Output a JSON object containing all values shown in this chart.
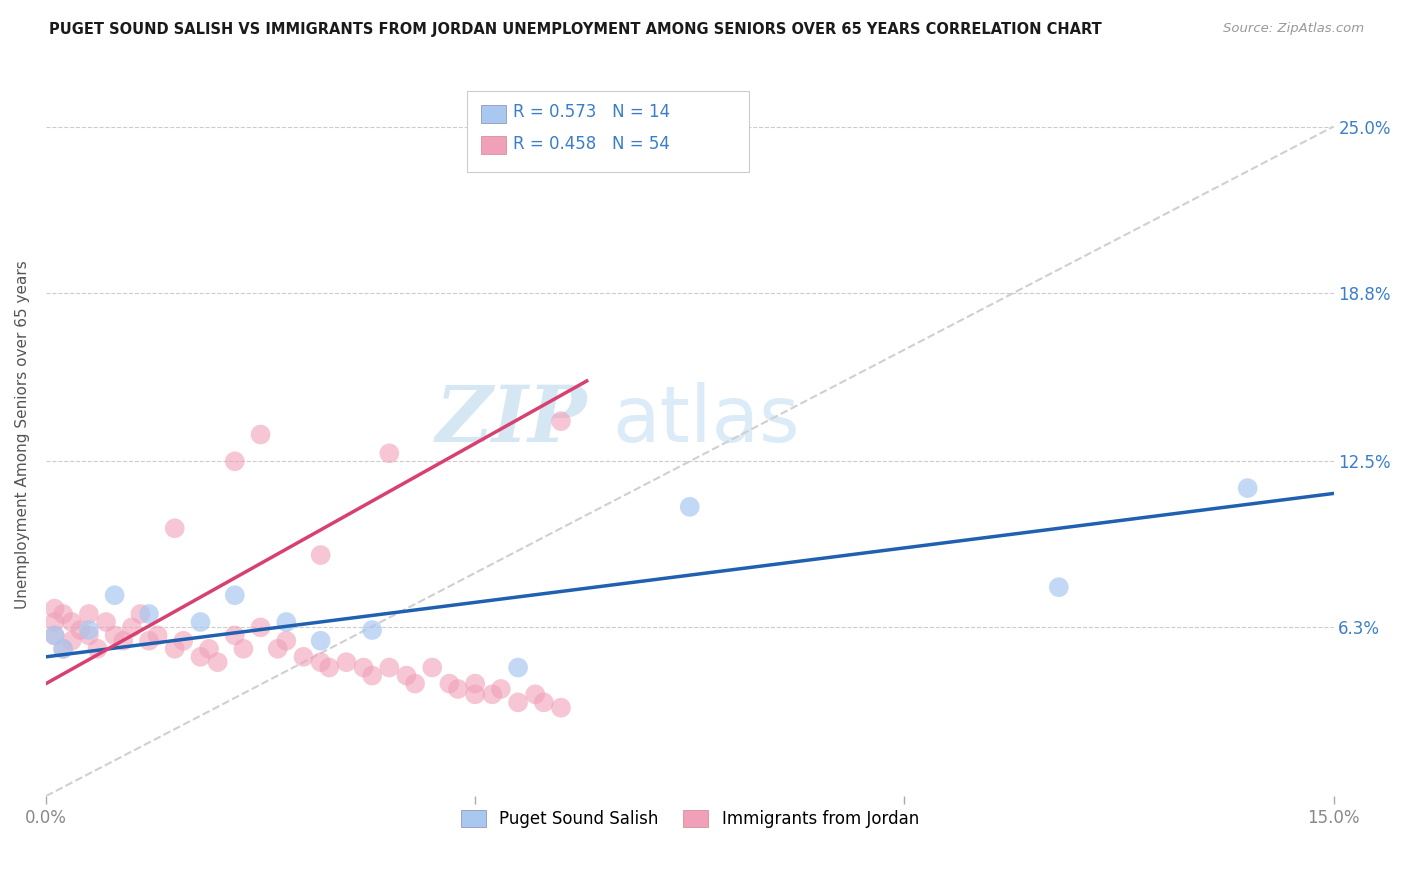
{
  "title": "PUGET SOUND SALISH VS IMMIGRANTS FROM JORDAN UNEMPLOYMENT AMONG SENIORS OVER 65 YEARS CORRELATION CHART",
  "source": "Source: ZipAtlas.com",
  "ylabel": "Unemployment Among Seniors over 65 years",
  "xlim": [
    0.0,
    0.15
  ],
  "ylim": [
    0.0,
    0.27
  ],
  "xticks": [
    0.0,
    0.05,
    0.1,
    0.15
  ],
  "xtick_labels": [
    "0.0%",
    "",
    "",
    "15.0%"
  ],
  "ytick_labels_right": [
    "25.0%",
    "18.8%",
    "12.5%",
    "6.3%"
  ],
  "ytick_values_right": [
    0.25,
    0.188,
    0.125,
    0.063
  ],
  "watermark_zip": "ZIP",
  "watermark_atlas": "atlas",
  "background_color": "#ffffff",
  "grid_color": "#cccccc",
  "blue_label": "Puget Sound Salish",
  "pink_label": "Immigrants from Jordan",
  "blue_R": 0.573,
  "blue_N": 14,
  "pink_R": 0.458,
  "pink_N": 54,
  "blue_color": "#a8c8f0",
  "pink_color": "#f0a0b8",
  "blue_line_color": "#2060b0",
  "pink_line_color": "#d84070",
  "dashed_line_color": "#d0d0d0",
  "blue_scatter_x": [
    0.001,
    0.002,
    0.005,
    0.008,
    0.012,
    0.018,
    0.022,
    0.028,
    0.032,
    0.038,
    0.055,
    0.075,
    0.118,
    0.14
  ],
  "blue_scatter_y": [
    0.06,
    0.055,
    0.062,
    0.075,
    0.068,
    0.065,
    0.075,
    0.065,
    0.058,
    0.062,
    0.048,
    0.108,
    0.078,
    0.115
  ],
  "pink_scatter_x": [
    0.001,
    0.001,
    0.001,
    0.002,
    0.002,
    0.003,
    0.003,
    0.004,
    0.005,
    0.005,
    0.006,
    0.007,
    0.008,
    0.009,
    0.01,
    0.011,
    0.012,
    0.013,
    0.015,
    0.016,
    0.018,
    0.019,
    0.02,
    0.022,
    0.023,
    0.025,
    0.027,
    0.028,
    0.03,
    0.032,
    0.033,
    0.035,
    0.037,
    0.038,
    0.04,
    0.042,
    0.043,
    0.045,
    0.047,
    0.048,
    0.05,
    0.05,
    0.052,
    0.053,
    0.055,
    0.057,
    0.058,
    0.06,
    0.032,
    0.015,
    0.022,
    0.04,
    0.025,
    0.06
  ],
  "pink_scatter_y": [
    0.06,
    0.065,
    0.07,
    0.055,
    0.068,
    0.058,
    0.065,
    0.062,
    0.06,
    0.068,
    0.055,
    0.065,
    0.06,
    0.058,
    0.063,
    0.068,
    0.058,
    0.06,
    0.055,
    0.058,
    0.052,
    0.055,
    0.05,
    0.06,
    0.055,
    0.063,
    0.055,
    0.058,
    0.052,
    0.05,
    0.048,
    0.05,
    0.048,
    0.045,
    0.048,
    0.045,
    0.042,
    0.048,
    0.042,
    0.04,
    0.042,
    0.038,
    0.038,
    0.04,
    0.035,
    0.038,
    0.035,
    0.033,
    0.09,
    0.1,
    0.125,
    0.128,
    0.135,
    0.14
  ],
  "blue_line_x0": 0.0,
  "blue_line_y0": 0.052,
  "blue_line_x1": 0.15,
  "blue_line_y1": 0.113,
  "pink_line_x0": 0.0,
  "pink_line_y0": 0.042,
  "pink_line_x1": 0.063,
  "pink_line_y1": 0.155
}
